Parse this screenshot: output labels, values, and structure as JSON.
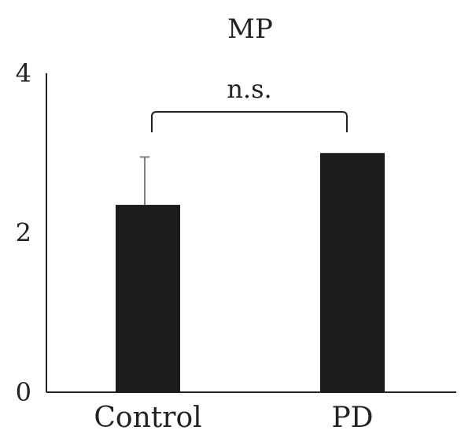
{
  "chart_data": {
    "type": "bar",
    "title": "MP",
    "categories": [
      "Control",
      "PD"
    ],
    "values": [
      2.35,
      3.0
    ],
    "error": [
      0.6,
      0.0
    ],
    "ylim": [
      0,
      4
    ],
    "yticks": [
      0,
      2,
      4
    ],
    "xlabel": "",
    "ylabel": "",
    "grid": false,
    "bar_color": "#1c1c1c",
    "error_color": "#808080",
    "annotation": {
      "text": "n.s.",
      "between": [
        "Control",
        "PD"
      ]
    }
  }
}
